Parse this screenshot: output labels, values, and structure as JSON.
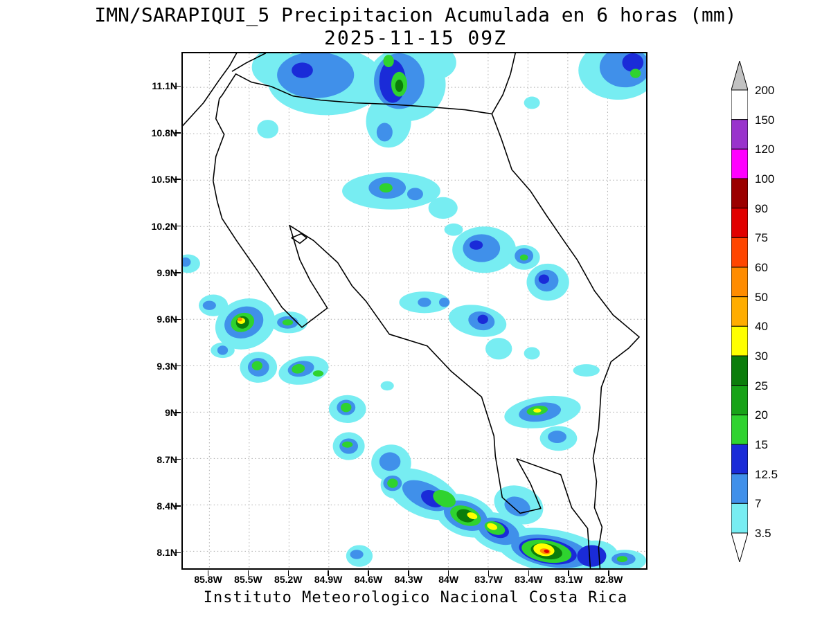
{
  "title": {
    "line1": "IMN/SARAPIQUI_5 Precipitacion Acumulada en 6 horas (mm)",
    "line2": "2025-11-15 09Z"
  },
  "footer": "Instituto Meteorologico Nacional Costa Rica",
  "axes": {
    "lat_ticks": [
      "11.1N",
      "10.8N",
      "10.5N",
      "10.2N",
      "9.9N",
      "9.6N",
      "9.3N",
      "9N",
      "8.7N",
      "8.4N",
      "8.1N"
    ],
    "lat_values": [
      11.1,
      10.8,
      10.5,
      10.2,
      9.9,
      9.6,
      9.3,
      9.0,
      8.7,
      8.4,
      8.1
    ],
    "lon_ticks": [
      "85.8W",
      "85.5W",
      "85.2W",
      "84.9W",
      "84.6W",
      "84.3W",
      "84W",
      "83.7W",
      "83.4W",
      "83.1W",
      "82.8W"
    ],
    "lon_values": [
      85.8,
      85.5,
      85.2,
      84.9,
      84.6,
      84.3,
      84.0,
      83.7,
      83.4,
      83.1,
      82.8
    ]
  },
  "colorbar": {
    "labels": [
      "200",
      "150",
      "120",
      "100",
      "90",
      "75",
      "60",
      "50",
      "40",
      "30",
      "25",
      "20",
      "15",
      "12.5",
      "7",
      "3.5"
    ],
    "segment_colors_top_to_bottom": [
      "#FFFFFF",
      "#9933CC",
      "#FF00FF",
      "#9B0000",
      "#E10000",
      "#FF4600",
      "#FF8C00",
      "#FFAD00",
      "#FFFF00",
      "#0B7D0B",
      "#17A317",
      "#2FD32F",
      "#1A2BD8",
      "#4090EA",
      "#77EDF2"
    ],
    "top_triangle_color": "#C2C2C2",
    "bottom_triangle_color": "#FFFFFF"
  },
  "chart_data": {
    "type": "heatmap",
    "title": "IMN/SARAPIQUI_5 Precipitacion Acumulada en 6 horas (mm)",
    "valid_time": "2025-11-15 09Z",
    "units": "mm",
    "region": "Costa Rica",
    "extent": {
      "lonW_max": 86.0,
      "lonW_min": 82.51,
      "lat_max": 11.32,
      "lat_min": 7.99
    },
    "levels": [
      3.5,
      7,
      12.5,
      15,
      20,
      25,
      30,
      40,
      50,
      60,
      75,
      90,
      100,
      120,
      150,
      200
    ],
    "palette": {
      "3.5": "#77EDF2",
      "7": "#4090EA",
      "12.5": "#1A2BD8",
      "15": "#2FD32F",
      "20": "#17A317",
      "25": "#0B7D0B",
      "30": "#FFFF00",
      "40": "#FFAD00",
      "50": "#FF8C00",
      "60": "#FF4600",
      "75": "#E10000",
      "90": "#9B0000",
      "100": "#FF00FF",
      "120": "#9933CC",
      "150": "#FFFFFF",
      "200": "#C2C2C2"
    },
    "cells_format": [
      "level_mm",
      "lonW",
      "lat",
      "rx_deg",
      "ry_deg",
      "rot_deg"
    ],
    "cells": [
      [
        3.5,
        84.92,
        11.14,
        0.44,
        0.22,
        0
      ],
      [
        3.5,
        84.32,
        11.12,
        0.3,
        0.24,
        0
      ],
      [
        3.5,
        84.45,
        10.88,
        0.17,
        0.17,
        0
      ],
      [
        3.5,
        85.31,
        11.23,
        0.17,
        0.12,
        0
      ],
      [
        3.5,
        84.1,
        11.26,
        0.16,
        0.11,
        0
      ],
      [
        3.5,
        82.72,
        11.21,
        0.3,
        0.19,
        0
      ],
      [
        3.5,
        85.36,
        10.83,
        0.08,
        0.06,
        0
      ],
      [
        3.5,
        84.43,
        10.43,
        0.37,
        0.12,
        0
      ],
      [
        3.5,
        84.04,
        10.32,
        0.11,
        0.07,
        0
      ],
      [
        3.5,
        83.96,
        10.18,
        0.07,
        0.04,
        0
      ],
      [
        3.5,
        83.73,
        10.05,
        0.24,
        0.15,
        0
      ],
      [
        3.5,
        83.43,
        10.0,
        0.12,
        0.08,
        0
      ],
      [
        3.5,
        83.25,
        9.84,
        0.16,
        0.12,
        0
      ],
      [
        3.5,
        85.96,
        9.96,
        0.09,
        0.06,
        0
      ],
      [
        3.5,
        85.77,
        9.69,
        0.11,
        0.07,
        0
      ],
      [
        3.5,
        85.53,
        9.57,
        0.23,
        0.16,
        -20
      ],
      [
        3.5,
        85.2,
        9.58,
        0.14,
        0.07,
        0
      ],
      [
        3.5,
        85.7,
        9.4,
        0.09,
        0.05,
        0
      ],
      [
        3.5,
        85.43,
        9.29,
        0.14,
        0.1,
        0
      ],
      [
        3.5,
        85.09,
        9.27,
        0.19,
        0.09,
        -10
      ],
      [
        3.5,
        84.18,
        9.71,
        0.19,
        0.07,
        0
      ],
      [
        3.5,
        83.78,
        9.59,
        0.22,
        0.1,
        10
      ],
      [
        3.5,
        83.62,
        9.41,
        0.1,
        0.07,
        0
      ],
      [
        3.5,
        84.76,
        9.02,
        0.14,
        0.09,
        0
      ],
      [
        3.5,
        84.46,
        9.17,
        0.05,
        0.03,
        0
      ],
      [
        3.5,
        84.75,
        8.78,
        0.12,
        0.09,
        0
      ],
      [
        3.5,
        84.43,
        8.67,
        0.15,
        0.12,
        0
      ],
      [
        3.5,
        84.4,
        8.53,
        0.11,
        0.09,
        0
      ],
      [
        3.5,
        83.29,
        9.0,
        0.29,
        0.1,
        -8
      ],
      [
        3.5,
        83.17,
        8.83,
        0.14,
        0.08,
        0
      ],
      [
        3.5,
        82.96,
        9.27,
        0.1,
        0.04,
        0
      ],
      [
        3.5,
        83.37,
        9.38,
        0.06,
        0.04,
        0
      ],
      [
        3.5,
        84.19,
        8.47,
        0.3,
        0.14,
        25
      ],
      [
        3.5,
        83.87,
        8.33,
        0.24,
        0.13,
        20
      ],
      [
        3.5,
        83.61,
        8.22,
        0.24,
        0.12,
        20
      ],
      [
        3.5,
        83.21,
        8.1,
        0.43,
        0.14,
        10
      ],
      [
        3.5,
        82.89,
        8.07,
        0.17,
        0.1,
        0
      ],
      [
        3.5,
        82.67,
        8.04,
        0.16,
        0.07,
        0
      ],
      [
        3.5,
        84.67,
        8.07,
        0.1,
        0.07,
        0
      ],
      [
        3.5,
        83.37,
        11.0,
        0.06,
        0.04,
        0
      ],
      [
        3.5,
        83.47,
        8.4,
        0.19,
        0.12,
        20
      ],
      [
        7,
        85.0,
        11.18,
        0.29,
        0.15,
        0
      ],
      [
        7,
        84.37,
        11.14,
        0.19,
        0.18,
        0
      ],
      [
        7,
        84.48,
        10.81,
        0.06,
        0.06,
        0
      ],
      [
        7,
        82.67,
        11.23,
        0.19,
        0.13,
        0
      ],
      [
        7,
        84.46,
        10.45,
        0.14,
        0.07,
        0
      ],
      [
        7,
        84.25,
        10.41,
        0.06,
        0.04,
        0
      ],
      [
        7,
        83.75,
        10.06,
        0.14,
        0.09,
        0
      ],
      [
        7,
        83.43,
        10.01,
        0.07,
        0.05,
        0
      ],
      [
        7,
        83.26,
        9.85,
        0.09,
        0.07,
        0
      ],
      [
        7,
        85.98,
        9.97,
        0.04,
        0.03,
        0
      ],
      [
        7,
        85.8,
        9.69,
        0.05,
        0.03,
        0
      ],
      [
        7,
        85.54,
        9.58,
        0.15,
        0.1,
        -20
      ],
      [
        7,
        85.21,
        9.58,
        0.08,
        0.04,
        0
      ],
      [
        7,
        85.7,
        9.4,
        0.04,
        0.03,
        0
      ],
      [
        7,
        85.43,
        9.29,
        0.08,
        0.06,
        0
      ],
      [
        7,
        85.11,
        9.28,
        0.1,
        0.05,
        -10
      ],
      [
        7,
        84.18,
        9.71,
        0.05,
        0.03,
        0
      ],
      [
        7,
        84.03,
        9.71,
        0.04,
        0.03,
        0
      ],
      [
        7,
        83.75,
        9.59,
        0.1,
        0.06,
        10
      ],
      [
        7,
        84.77,
        9.03,
        0.07,
        0.05,
        0
      ],
      [
        7,
        84.75,
        8.78,
        0.07,
        0.05,
        0
      ],
      [
        7,
        84.44,
        8.68,
        0.08,
        0.06,
        0
      ],
      [
        7,
        84.42,
        8.54,
        0.07,
        0.05,
        0
      ],
      [
        7,
        83.31,
        9.0,
        0.16,
        0.06,
        -8
      ],
      [
        7,
        83.18,
        8.84,
        0.07,
        0.04,
        0
      ],
      [
        7,
        84.17,
        8.46,
        0.19,
        0.08,
        25
      ],
      [
        7,
        83.87,
        8.33,
        0.17,
        0.09,
        20
      ],
      [
        7,
        83.62,
        8.23,
        0.16,
        0.08,
        20
      ],
      [
        7,
        83.23,
        8.1,
        0.3,
        0.1,
        10
      ],
      [
        7,
        82.68,
        8.05,
        0.09,
        0.04,
        0
      ],
      [
        7,
        84.69,
        8.08,
        0.05,
        0.03,
        0
      ],
      [
        7,
        83.48,
        8.39,
        0.1,
        0.06,
        20
      ],
      [
        12.5,
        85.1,
        11.21,
        0.08,
        0.05,
        0
      ],
      [
        12.5,
        84.42,
        11.14,
        0.1,
        0.14,
        0
      ],
      [
        12.5,
        82.61,
        11.26,
        0.08,
        0.06,
        0
      ],
      [
        12.5,
        83.79,
        10.08,
        0.05,
        0.03,
        0
      ],
      [
        12.5,
        83.28,
        9.86,
        0.04,
        0.03,
        0
      ],
      [
        12.5,
        83.74,
        9.6,
        0.04,
        0.03,
        0
      ],
      [
        12.5,
        84.12,
        8.44,
        0.09,
        0.05,
        25
      ],
      [
        12.5,
        82.92,
        8.07,
        0.11,
        0.07,
        0
      ],
      [
        12.5,
        83.87,
        8.33,
        0.1,
        0.06,
        20
      ],
      [
        12.5,
        83.63,
        8.24,
        0.09,
        0.05,
        20
      ],
      [
        12.5,
        83.25,
        8.1,
        0.22,
        0.08,
        10
      ],
      [
        15,
        84.37,
        11.12,
        0.06,
        0.08,
        0
      ],
      [
        15,
        84.45,
        11.27,
        0.04,
        0.04,
        0
      ],
      [
        15,
        82.59,
        11.19,
        0.04,
        0.03,
        0
      ],
      [
        15,
        84.47,
        10.45,
        0.05,
        0.03,
        0
      ],
      [
        15,
        83.43,
        10.0,
        0.03,
        0.02,
        0
      ],
      [
        15,
        85.55,
        9.58,
        0.09,
        0.06,
        -20
      ],
      [
        15,
        85.21,
        9.58,
        0.04,
        0.02,
        0
      ],
      [
        15,
        85.44,
        9.3,
        0.04,
        0.03,
        0
      ],
      [
        15,
        85.13,
        9.28,
        0.05,
        0.03,
        -10
      ],
      [
        15,
        84.98,
        9.25,
        0.04,
        0.02,
        0
      ],
      [
        15,
        84.77,
        9.03,
        0.04,
        0.03,
        0
      ],
      [
        15,
        84.76,
        8.79,
        0.04,
        0.02,
        0
      ],
      [
        15,
        84.42,
        8.54,
        0.04,
        0.03,
        0
      ],
      [
        15,
        83.33,
        9.01,
        0.08,
        0.03,
        -8
      ],
      [
        15,
        84.03,
        8.44,
        0.09,
        0.05,
        25
      ],
      [
        15,
        83.87,
        8.33,
        0.12,
        0.06,
        20
      ],
      [
        15,
        83.65,
        8.25,
        0.08,
        0.04,
        20
      ],
      [
        15,
        83.26,
        8.1,
        0.19,
        0.07,
        10
      ],
      [
        15,
        82.69,
        8.05,
        0.04,
        0.02,
        0
      ],
      [
        25,
        85.55,
        9.58,
        0.05,
        0.04,
        -20
      ],
      [
        25,
        83.87,
        8.33,
        0.07,
        0.04,
        20
      ],
      [
        25,
        83.26,
        8.1,
        0.12,
        0.05,
        10
      ],
      [
        25,
        84.37,
        11.11,
        0.03,
        0.04,
        0
      ],
      [
        30,
        85.56,
        9.59,
        0.03,
        0.02,
        0
      ],
      [
        30,
        83.82,
        8.33,
        0.04,
        0.02,
        20
      ],
      [
        30,
        83.67,
        8.26,
        0.04,
        0.02,
        20
      ],
      [
        30,
        83.28,
        8.11,
        0.08,
        0.04,
        10
      ],
      [
        30,
        83.33,
        9.01,
        0.03,
        0.013,
        0
      ],
      [
        50,
        85.57,
        9.6,
        0.018,
        0.013,
        0
      ],
      [
        50,
        83.27,
        8.1,
        0.04,
        0.018,
        10
      ],
      [
        75,
        83.26,
        8.1,
        0.02,
        0.011,
        10
      ]
    ]
  },
  "map_geometry": {
    "units": "map-local pixels, 673x748 viewBox",
    "coastline_paths": [
      "M 606,748 L 604,718 L 609,688 L 598,660 L 601,622 L 596,588 L 604,545 L 608,485 L 622,448 L 648,428 L 663,412 L 625,380 L 598,345 L 573,300 L 552,270 L 528,235 L 505,200 L 478,169 L 463,125 L 449,88 L 410,82 L 360,78 L 300,74 L 250,72 L 200,68 L 160,62 L 128,48 L 100,42 L 77,30 L 57,61 L 53,66 L 48,95 L 60,118 L 48,150 L 44,185 L 50,215 L 57,240 L 78,272 L 108,315 L 144,369 L 173,398 L 210,370 L 185,330 L 170,300 L 155,250 L 190,272 L 225,304 L 246,338 L 266,360 L 300,408 L 355,425 L 390,462 L 434,499 L 452,556 L 454,585 L 464,645 L 490,668 L 520,661 L 505,625 L 485,589 L 549,612 L 565,660 L 588,690 L 592,748",
      "M 449,88 L 465,60 L 476,30 L 483,0",
      "M 0,105 L 30,72 L 52,40 L 68,18 L 78,0",
      "M 120,0 L 92,14 L 72,26",
      "M 158,268 L 172,262 L 180,268 L 170,276 Z"
    ]
  }
}
